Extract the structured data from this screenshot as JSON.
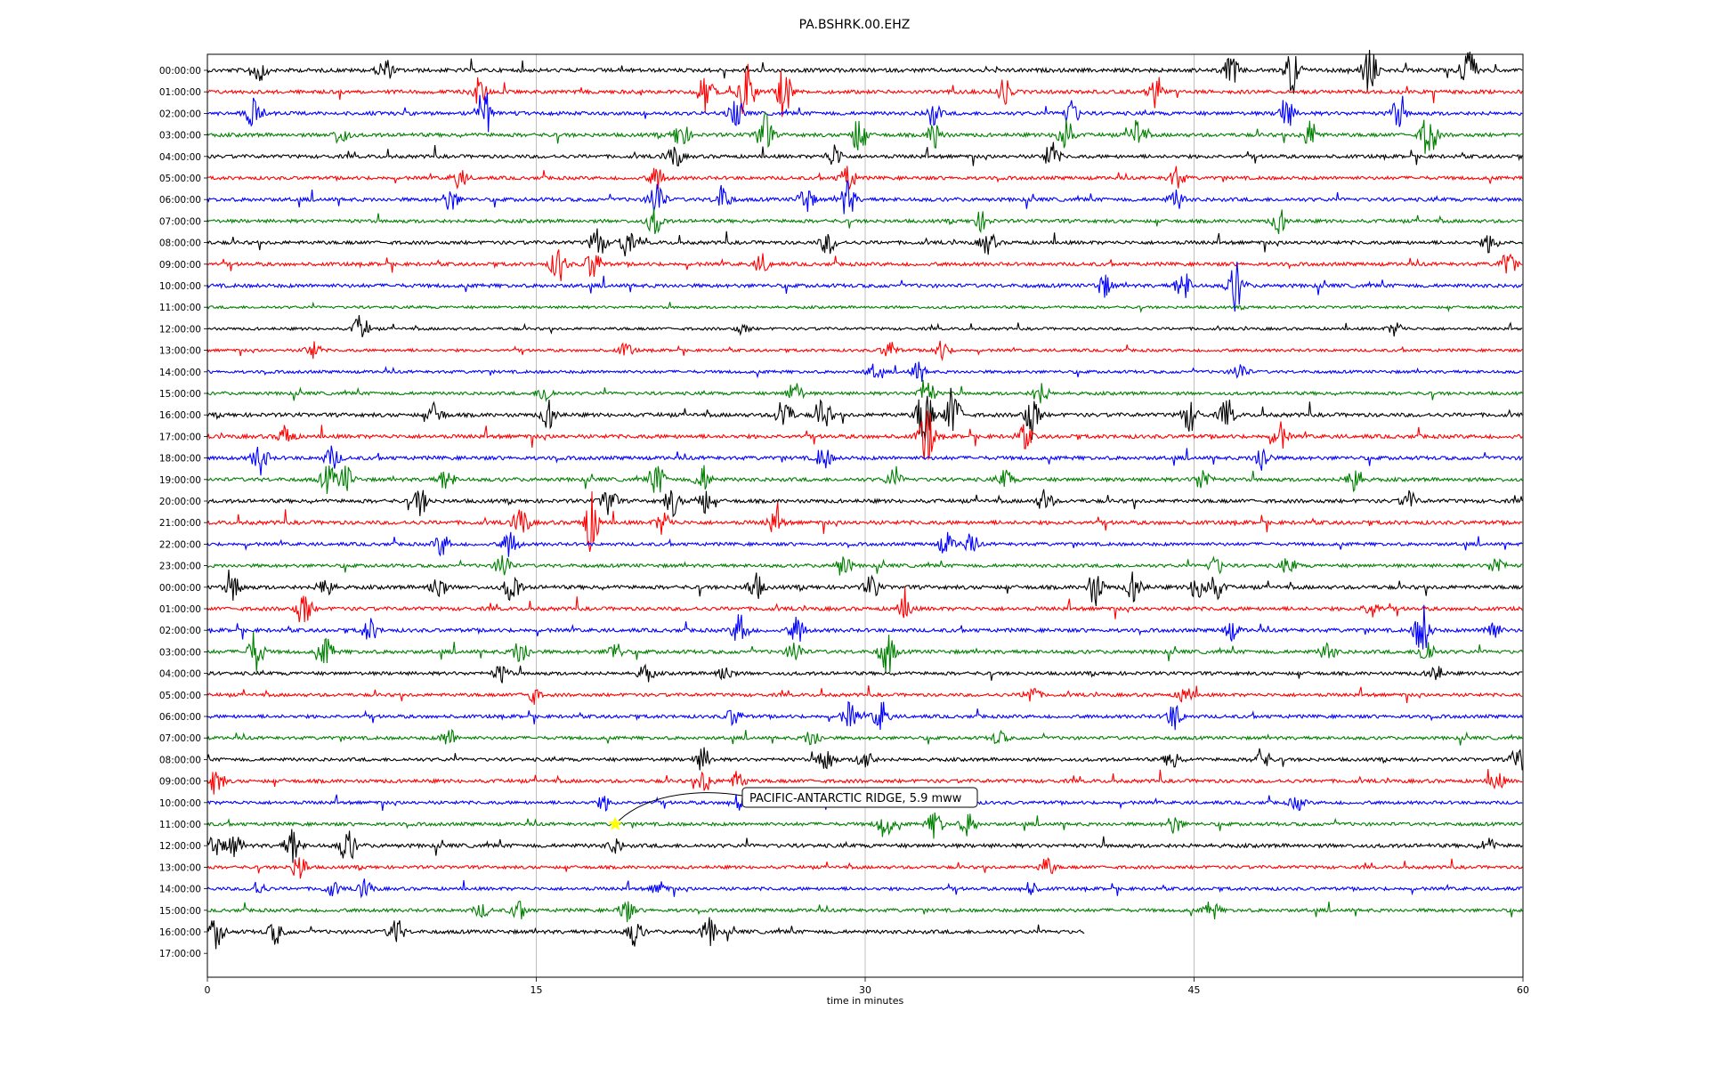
{
  "chart_data": {
    "type": "line",
    "title": "PA.BSHRK.00.EHZ",
    "xlabel": "time in minutes",
    "ylabel": "",
    "xlim": [
      0,
      60
    ],
    "xticks": [
      0,
      15,
      30,
      45,
      60
    ],
    "grid": "vertical",
    "trace_colors": [
      "#000000",
      "#ff0000",
      "#0000ff",
      "#008000"
    ],
    "rows": [
      {
        "label": "00:00:00",
        "amplitude": 0.9,
        "events": [
          [
            2.3,
            0.6
          ],
          [
            8.1,
            0.5
          ],
          [
            46.7,
            0.6
          ],
          [
            49.5,
            1.0
          ],
          [
            53.0,
            1.0
          ],
          [
            57.5,
            1.2
          ]
        ]
      },
      {
        "label": "01:00:00",
        "amplitude": 0.8,
        "events": [
          [
            12.4,
            0.6
          ],
          [
            22.7,
            0.8
          ],
          [
            24.6,
            1.3
          ],
          [
            26.3,
            1.1
          ],
          [
            36.3,
            0.6
          ],
          [
            43.3,
            0.7
          ]
        ]
      },
      {
        "label": "02:00:00",
        "amplitude": 0.8,
        "events": [
          [
            2.1,
            0.6
          ],
          [
            12.6,
            1.2
          ],
          [
            24.1,
            0.5
          ],
          [
            33.1,
            0.5
          ],
          [
            39.4,
            0.6
          ],
          [
            49.2,
            0.7
          ],
          [
            54.3,
            0.6
          ]
        ]
      },
      {
        "label": "03:00:00",
        "amplitude": 0.8,
        "events": [
          [
            6.1,
            0.4
          ],
          [
            21.6,
            0.6
          ],
          [
            25.4,
            1.0
          ],
          [
            29.7,
            0.8
          ],
          [
            33.2,
            0.6
          ],
          [
            39.1,
            0.9
          ],
          [
            42.4,
            0.7
          ],
          [
            50.3,
            0.6
          ],
          [
            55.7,
            1.1
          ]
        ]
      },
      {
        "label": "04:00:00",
        "amplitude": 0.7,
        "events": [
          [
            21.3,
            0.5
          ],
          [
            28.6,
            0.5
          ],
          [
            38.5,
            0.6
          ]
        ]
      },
      {
        "label": "05:00:00",
        "amplitude": 0.6,
        "events": [
          [
            11.5,
            0.4
          ],
          [
            20.5,
            0.5
          ],
          [
            29.2,
            0.6
          ],
          [
            44.2,
            0.5
          ]
        ]
      },
      {
        "label": "06:00:00",
        "amplitude": 0.8,
        "events": [
          [
            11.1,
            0.5
          ],
          [
            20.5,
            0.9
          ],
          [
            23.5,
            0.6
          ],
          [
            27.3,
            0.6
          ],
          [
            29.2,
            0.8
          ],
          [
            44.2,
            0.4
          ]
        ]
      },
      {
        "label": "07:00:00",
        "amplitude": 0.6,
        "events": [
          [
            20.4,
            0.6
          ],
          [
            35.3,
            0.4
          ],
          [
            48.9,
            0.5
          ]
        ]
      },
      {
        "label": "08:00:00",
        "amplitude": 0.7,
        "events": [
          [
            17.8,
            0.7
          ],
          [
            19.1,
            0.6
          ],
          [
            28.3,
            0.5
          ],
          [
            35.6,
            0.5
          ],
          [
            58.5,
            0.4
          ]
        ]
      },
      {
        "label": "09:00:00",
        "amplitude": 0.7,
        "events": [
          [
            16.0,
            0.8
          ],
          [
            17.6,
            0.7
          ],
          [
            25.3,
            0.4
          ],
          [
            59.3,
            0.5
          ]
        ]
      },
      {
        "label": "10:00:00",
        "amplitude": 0.8,
        "events": [
          [
            40.9,
            0.5
          ],
          [
            44.5,
            0.7
          ],
          [
            46.9,
            1.1
          ]
        ]
      },
      {
        "label": "11:00:00",
        "amplitude": 0.1,
        "events": []
      },
      {
        "label": "12:00:00",
        "amplitude": 0.15,
        "events": [
          [
            7.0,
            0.6
          ],
          [
            24.4,
            0.2
          ],
          [
            54.2,
            0.3
          ]
        ]
      },
      {
        "label": "13:00:00",
        "amplitude": 0.2,
        "events": [
          [
            4.8,
            0.4
          ],
          [
            19.1,
            0.3
          ],
          [
            31.1,
            0.4
          ],
          [
            33.5,
            0.4
          ]
        ]
      },
      {
        "label": "14:00:00",
        "amplitude": 0.3,
        "events": [
          [
            30.4,
            0.3
          ],
          [
            32.4,
            0.4
          ],
          [
            47.1,
            0.4
          ]
        ]
      },
      {
        "label": "15:00:00",
        "amplitude": 0.5,
        "events": [
          [
            15.4,
            0.4
          ],
          [
            26.8,
            0.5
          ],
          [
            32.8,
            0.7
          ],
          [
            38.0,
            0.5
          ]
        ]
      },
      {
        "label": "16:00:00",
        "amplitude": 0.9,
        "events": [
          [
            10.4,
            0.5
          ],
          [
            15.6,
            0.6
          ],
          [
            26.3,
            0.8
          ],
          [
            28.1,
            0.7
          ],
          [
            32.7,
            1.5
          ],
          [
            34.0,
            1.2
          ],
          [
            37.6,
            1.0
          ],
          [
            44.8,
            0.7
          ],
          [
            46.5,
            0.6
          ]
        ]
      },
      {
        "label": "17:00:00",
        "amplitude": 0.9,
        "events": [
          [
            3.6,
            0.5
          ],
          [
            32.8,
            1.3
          ],
          [
            37.3,
            0.5
          ],
          [
            48.9,
            0.6
          ]
        ]
      },
      {
        "label": "18:00:00",
        "amplitude": 0.8,
        "events": [
          [
            2.4,
            0.7
          ],
          [
            5.7,
            0.5
          ],
          [
            28.1,
            0.5
          ],
          [
            48.1,
            0.6
          ]
        ]
      },
      {
        "label": "19:00:00",
        "amplitude": 0.8,
        "events": [
          [
            5.5,
            0.6
          ],
          [
            6.3,
            0.6
          ],
          [
            10.9,
            0.5
          ],
          [
            20.5,
            0.7
          ],
          [
            22.6,
            0.6
          ],
          [
            31.3,
            0.4
          ],
          [
            36.4,
            0.4
          ],
          [
            45.4,
            0.5
          ],
          [
            52.3,
            0.7
          ]
        ]
      },
      {
        "label": "20:00:00",
        "amplitude": 0.8,
        "events": [
          [
            9.7,
            0.6
          ],
          [
            18.3,
            0.7
          ],
          [
            21.2,
            0.6
          ],
          [
            22.6,
            0.6
          ],
          [
            38.2,
            0.5
          ],
          [
            54.8,
            0.4
          ]
        ]
      },
      {
        "label": "21:00:00",
        "amplitude": 0.9,
        "events": [
          [
            14.3,
            0.7
          ],
          [
            17.5,
            1.3
          ],
          [
            20.8,
            0.5
          ],
          [
            25.9,
            0.5
          ]
        ]
      },
      {
        "label": "22:00:00",
        "amplitude": 0.5,
        "events": [
          [
            10.7,
            0.5
          ],
          [
            13.8,
            0.6
          ],
          [
            33.7,
            0.5
          ],
          [
            34.8,
            0.4
          ]
        ]
      },
      {
        "label": "23:00:00",
        "amplitude": 0.6,
        "events": [
          [
            13.5,
            0.6
          ],
          [
            29.0,
            0.5
          ],
          [
            46.0,
            0.4
          ],
          [
            49.3,
            0.4
          ],
          [
            58.8,
            0.4
          ]
        ]
      },
      {
        "label": "00:00:00",
        "amplitude": 0.9,
        "events": [
          [
            1.2,
            0.6
          ],
          [
            5.4,
            0.5
          ],
          [
            10.5,
            0.6
          ],
          [
            13.9,
            0.7
          ],
          [
            25.0,
            0.6
          ],
          [
            30.3,
            0.5
          ],
          [
            40.5,
            0.8
          ],
          [
            42.3,
            0.7
          ],
          [
            45.2,
            0.7
          ],
          [
            46.0,
            0.5
          ]
        ]
      },
      {
        "label": "01:00:00",
        "amplitude": 0.8,
        "events": [
          [
            4.4,
            0.8
          ],
          [
            31.8,
            0.5
          ],
          [
            53.1,
            0.4
          ]
        ]
      },
      {
        "label": "02:00:00",
        "amplitude": 0.8,
        "events": [
          [
            7.4,
            0.5
          ],
          [
            24.3,
            0.8
          ],
          [
            26.9,
            0.6
          ],
          [
            46.7,
            0.4
          ],
          [
            55.4,
            1.2
          ],
          [
            58.6,
            0.5
          ]
        ]
      },
      {
        "label": "03:00:00",
        "amplitude": 0.8,
        "events": [
          [
            2.2,
            0.9
          ],
          [
            5.4,
            0.6
          ],
          [
            14.3,
            0.6
          ],
          [
            18.6,
            0.4
          ],
          [
            26.8,
            0.5
          ],
          [
            31.0,
            1.0
          ],
          [
            51.1,
            0.4
          ],
          [
            55.6,
            0.6
          ]
        ]
      },
      {
        "label": "04:00:00",
        "amplitude": 0.6,
        "events": [
          [
            13.4,
            0.4
          ],
          [
            20.0,
            0.4
          ],
          [
            23.6,
            0.4
          ],
          [
            56.0,
            0.4
          ]
        ]
      },
      {
        "label": "05:00:00",
        "amplitude": 0.5,
        "events": [
          [
            14.8,
            0.4
          ],
          [
            37.6,
            0.4
          ],
          [
            44.6,
            0.4
          ]
        ]
      },
      {
        "label": "06:00:00",
        "amplitude": 0.6,
        "events": [
          [
            24.0,
            0.4
          ],
          [
            29.3,
            0.6
          ],
          [
            30.7,
            0.7
          ],
          [
            44.1,
            0.6
          ]
        ]
      },
      {
        "label": "07:00:00",
        "amplitude": 0.5,
        "events": [
          [
            11.0,
            0.4
          ],
          [
            27.6,
            0.4
          ],
          [
            36.1,
            0.3
          ]
        ]
      },
      {
        "label": "08:00:00",
        "amplitude": 0.6,
        "events": [
          [
            22.6,
            0.5
          ],
          [
            28.2,
            0.6
          ],
          [
            30.0,
            0.5
          ],
          [
            44.0,
            0.4
          ],
          [
            48.1,
            0.5
          ],
          [
            59.8,
            0.6
          ]
        ]
      },
      {
        "label": "09:00:00",
        "amplitude": 0.7,
        "events": [
          [
            0.4,
            0.6
          ],
          [
            22.7,
            0.5
          ],
          [
            24.2,
            0.4
          ],
          [
            58.8,
            0.4
          ]
        ]
      },
      {
        "label": "10:00:00",
        "amplitude": 0.5,
        "events": [
          [
            18.1,
            0.3
          ],
          [
            24.2,
            0.4
          ],
          [
            49.7,
            0.3
          ]
        ]
      },
      {
        "label": "11:00:00",
        "amplitude": 0.6,
        "events": [
          [
            30.9,
            0.6
          ],
          [
            33.2,
            0.6
          ],
          [
            34.7,
            0.5
          ],
          [
            44.1,
            0.4
          ]
        ]
      },
      {
        "label": "12:00:00",
        "amplitude": 0.9,
        "events": [
          [
            0.3,
            0.5
          ],
          [
            1.2,
            0.5
          ],
          [
            3.9,
            0.8
          ],
          [
            6.4,
            0.8
          ],
          [
            18.6,
            0.3
          ],
          [
            58.4,
            0.3
          ]
        ]
      },
      {
        "label": "13:00:00",
        "amplitude": 0.4,
        "events": [
          [
            4.2,
            0.6
          ],
          [
            38.3,
            0.4
          ]
        ]
      },
      {
        "label": "14:00:00",
        "amplitude": 0.5,
        "events": [
          [
            2.3,
            0.3
          ],
          [
            5.7,
            0.3
          ],
          [
            7.2,
            0.4
          ],
          [
            20.6,
            0.3
          ],
          [
            37.5,
            0.3
          ]
        ]
      },
      {
        "label": "15:00:00",
        "amplitude": 0.6,
        "events": [
          [
            12.5,
            0.3
          ],
          [
            14.2,
            0.4
          ],
          [
            19.1,
            0.5
          ],
          [
            45.8,
            0.4
          ]
        ]
      },
      {
        "label": "16:00:00",
        "amplitude": 0.8,
        "end": 40,
        "events": [
          [
            0.4,
            0.7
          ],
          [
            3.1,
            0.5
          ],
          [
            8.6,
            0.6
          ],
          [
            19.5,
            0.6
          ],
          [
            22.9,
            0.6
          ]
        ]
      },
      {
        "label": "17:00:00",
        "amplitude": 0,
        "events": []
      }
    ],
    "annotation": {
      "text": "PACIFIC-ANTARCTIC RIDGE, 5.9 mww",
      "row": 35,
      "x": 18.6,
      "marker": "star",
      "marker_color": "#ffff00"
    }
  }
}
